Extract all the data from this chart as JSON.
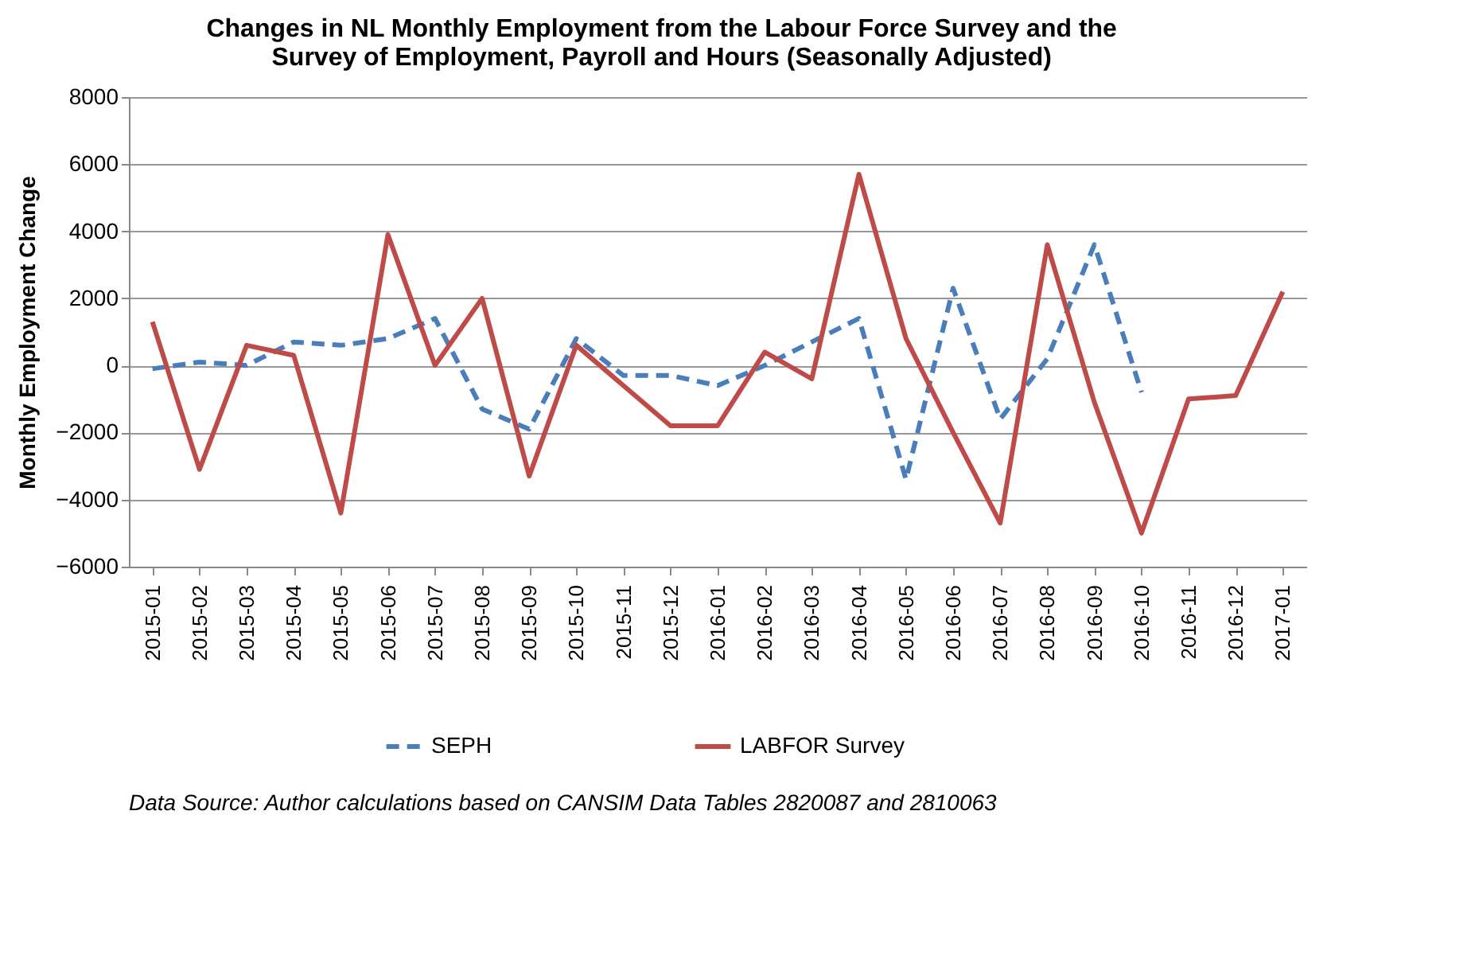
{
  "chart_data": {
    "type": "line",
    "title": [
      "Changes in NL Monthly Employment from the Labour Force Survey and the",
      "Survey of Employment, Payroll and Hours (Seasonally Adjusted)"
    ],
    "ylabel": "Monthly Employment Change",
    "categories": [
      "2015-01",
      "2015-02",
      "2015-03",
      "2015-04",
      "2015-05",
      "2015-06",
      "2015-07",
      "2015-08",
      "2015-09",
      "2015-10",
      "2015-11",
      "2015-12",
      "2016-01",
      "2016-02",
      "2016-03",
      "2016-04",
      "2016-05",
      "2016-06",
      "2016-07",
      "2016-08",
      "2016-09",
      "2016-10",
      "2016-11",
      "2016-12",
      "2017-01"
    ],
    "series": [
      {
        "name": "SEPH",
        "color": "#4a7ebb",
        "line_style": "dashed",
        "values": [
          -100,
          100,
          0,
          700,
          600,
          800,
          1400,
          -1300,
          -1900,
          800,
          -300,
          -300,
          -600,
          0,
          700,
          1400,
          -3400,
          2300,
          -1600,
          200,
          3600,
          -800,
          null,
          null,
          null
        ]
      },
      {
        "name": "LABFOR Survey",
        "color": "#be4b48",
        "line_style": "solid",
        "values": [
          1300,
          -3100,
          600,
          300,
          -4400,
          3900,
          0,
          2000,
          -3300,
          600,
          -600,
          -1800,
          -1800,
          400,
          -400,
          5700,
          800,
          -2000,
          -4700,
          3600,
          -1100,
          -5000,
          -1000,
          -900,
          2200
        ]
      }
    ],
    "ylim": [
      -6000,
      8000
    ],
    "yticks": [
      -6000,
      -4000,
      -2000,
      0,
      2000,
      4000,
      6000,
      8000
    ],
    "grid": "y",
    "legend": "bottom",
    "marker": "none",
    "annotations": [
      "Data Source: Author calculations based on CANSIM Data  Tables 2820087 and 2810063"
    ]
  }
}
